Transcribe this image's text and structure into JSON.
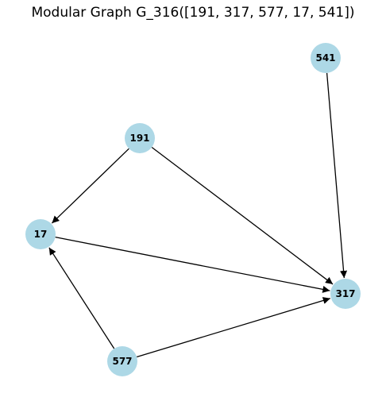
{
  "title": "Modular Graph G_316([191, 317, 577, 17, 541])",
  "style": {
    "node_color": "#add8e6",
    "edge_color": "#000000"
  },
  "nodes": [
    {
      "id": "541",
      "label": "541"
    },
    {
      "id": "191",
      "label": "191"
    },
    {
      "id": "17",
      "label": "17"
    },
    {
      "id": "317",
      "label": "317"
    },
    {
      "id": "577",
      "label": "577"
    }
  ],
  "edges": [
    {
      "from": "541",
      "to": "317"
    },
    {
      "from": "191",
      "to": "17"
    },
    {
      "from": "191",
      "to": "317"
    },
    {
      "from": "17",
      "to": "317"
    },
    {
      "from": "577",
      "to": "17"
    },
    {
      "from": "577",
      "to": "317"
    }
  ]
}
